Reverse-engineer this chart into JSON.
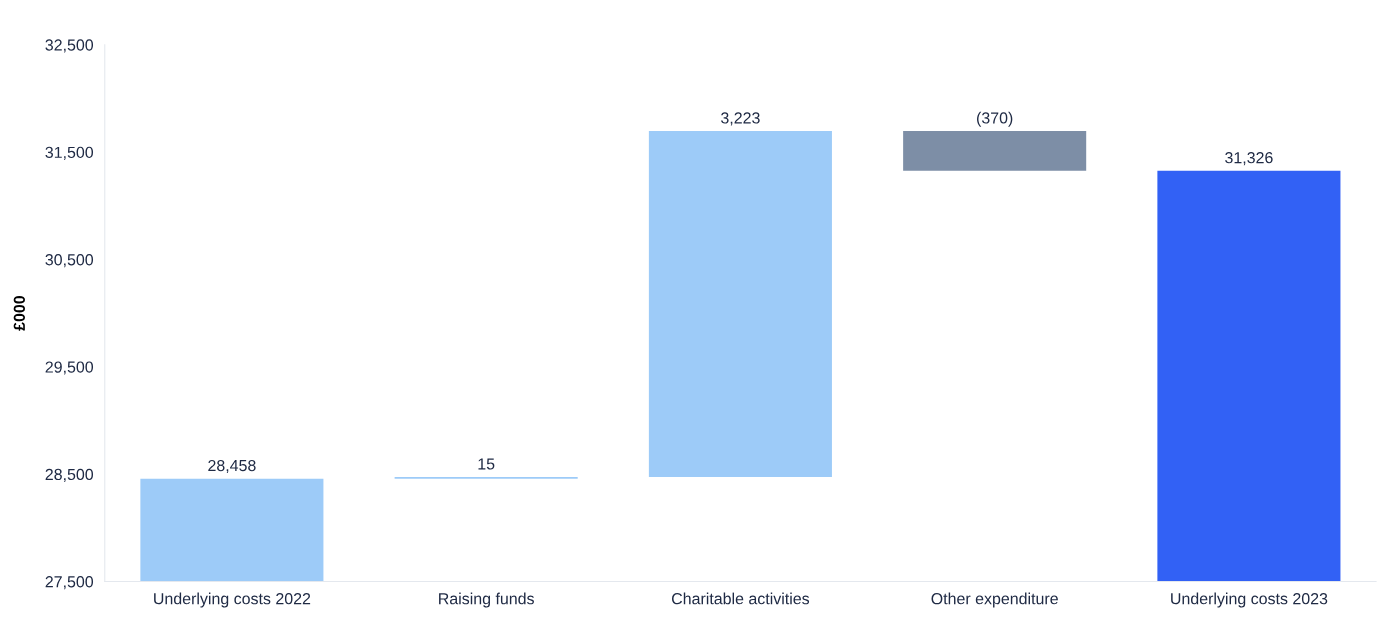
{
  "chart_data": {
    "type": "bar",
    "ylabel": "£000",
    "categories": [
      "Underlying costs 2022",
      "Raising funds",
      "Charitable activities",
      "Other expenditure",
      "Underlying costs 2023"
    ],
    "values": [
      28458,
      15,
      3223,
      -370,
      31326
    ],
    "base": [
      null,
      28458,
      28473,
      31696,
      null
    ],
    "colors": [
      "#9dcbf8",
      "#9dcbf8",
      "#9dcbf8",
      "#7d8ea6",
      "#3261f5"
    ],
    "value_labels": [
      "28,458",
      "15",
      "3,223",
      "(370)",
      "31,326"
    ],
    "ylim": [
      27500,
      32500
    ],
    "yticks": [
      {
        "value": 27500,
        "label": "27,500"
      },
      {
        "value": 28500,
        "label": "28,500"
      },
      {
        "value": 29500,
        "label": "29,500"
      },
      {
        "value": 30500,
        "label": "30,500"
      },
      {
        "value": 31500,
        "label": "31,500"
      },
      {
        "value": 32500,
        "label": "32,500"
      }
    ],
    "grid": false,
    "legend": false
  }
}
